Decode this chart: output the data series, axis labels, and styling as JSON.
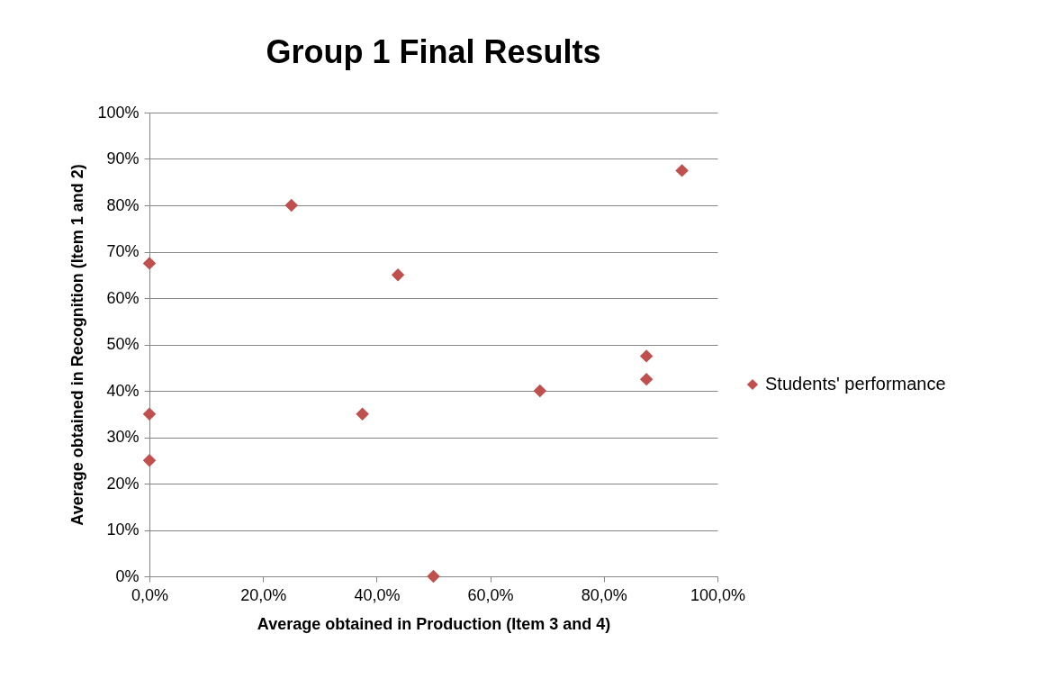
{
  "chart_data": {
    "type": "scatter",
    "title": "Group 1 Final Results",
    "xlabel": "Average obtained in Production (Item 3 and 4)",
    "ylabel": "Average obtained in Recognition (Item 1 and 2)",
    "series": [
      {
        "name": "Students' performance",
        "color": "#c0504d",
        "x": [
          0,
          25,
          0,
          0,
          37.5,
          43.75,
          50,
          68.75,
          87.5,
          87.5,
          93.75
        ],
        "values": [
          67.5,
          80,
          35,
          25,
          35,
          65,
          0,
          40,
          47.5,
          42.5,
          87.5
        ]
      }
    ],
    "xlim": [
      0,
      100
    ],
    "ylim": [
      0,
      100
    ],
    "xticks": [
      {
        "value": 0,
        "label": "0,0%"
      },
      {
        "value": 20,
        "label": "20,0%"
      },
      {
        "value": 40,
        "label": "40,0%"
      },
      {
        "value": 60,
        "label": "60,0%"
      },
      {
        "value": 80,
        "label": "80,0%"
      },
      {
        "value": 100,
        "label": "100,0%"
      }
    ],
    "yticks": [
      {
        "value": 0,
        "label": "0%"
      },
      {
        "value": 10,
        "label": "10%"
      },
      {
        "value": 20,
        "label": "20%"
      },
      {
        "value": 30,
        "label": "30%"
      },
      {
        "value": 40,
        "label": "40%"
      },
      {
        "value": 50,
        "label": "50%"
      },
      {
        "value": 60,
        "label": "60%"
      },
      {
        "value": 70,
        "label": "70%"
      },
      {
        "value": 80,
        "label": "80%"
      },
      {
        "value": 90,
        "label": "90%"
      },
      {
        "value": 100,
        "label": "100%"
      }
    ],
    "grid": "y",
    "legend": "right",
    "marker": "diamond"
  }
}
